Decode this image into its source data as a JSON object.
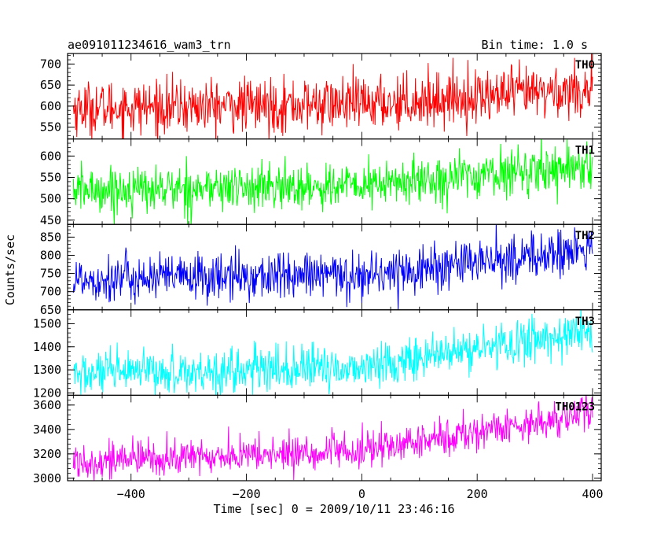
{
  "header": {
    "title": "ae091011234616_wam3_trn",
    "bin_time": "Bin time: 1.0 s"
  },
  "chart_data": {
    "type": "line",
    "xlabel": "Time [sec] 0 = 2009/10/11 23:46:16",
    "ylabel": "Counts/sec",
    "xlim": [
      -510,
      415
    ],
    "x_range": [
      -500,
      400
    ],
    "bin_time": 1.0,
    "xticks": [
      -400,
      -200,
      0,
      200,
      400
    ],
    "xtick_labels": [
      "−400",
      "−200",
      "0",
      "200",
      "400"
    ],
    "panels": [
      {
        "name": "TH0",
        "color": "#ff0000",
        "ylim": [
          522,
          725
        ],
        "yticks": [
          550,
          600,
          650,
          700
        ],
        "level_start": 595,
        "level_knee": 605,
        "level_end": 640,
        "knee_x": 0,
        "noise": 32
      },
      {
        "name": "TH1",
        "color": "#00ff00",
        "ylim": [
          440,
          640
        ],
        "yticks": [
          450,
          500,
          550,
          600
        ],
        "level_start": 520,
        "level_knee": 530,
        "level_end": 580,
        "knee_x": 0,
        "noise": 27
      },
      {
        "name": "TH2",
        "color": "#0000ff",
        "ylim": [
          650,
          885
        ],
        "yticks": [
          650,
          700,
          750,
          800,
          850
        ],
        "level_start": 735,
        "level_knee": 745,
        "level_end": 815,
        "knee_x": 0,
        "noise": 33
      },
      {
        "name": "TH3",
        "color": "#00ffff",
        "ylim": [
          1190,
          1560
        ],
        "yticks": [
          1200,
          1300,
          1400,
          1500
        ],
        "level_start": 1280,
        "level_knee": 1310,
        "level_end": 1470,
        "knee_x": 0,
        "noise": 48
      },
      {
        "name": "TH0123",
        "color": "#ff00ff",
        "ylim": [
          2980,
          3680
        ],
        "yticks": [
          3000,
          3200,
          3400,
          3600
        ],
        "level_start": 3140,
        "level_knee": 3220,
        "level_end": 3540,
        "knee_x": 0,
        "noise": 75
      }
    ]
  }
}
